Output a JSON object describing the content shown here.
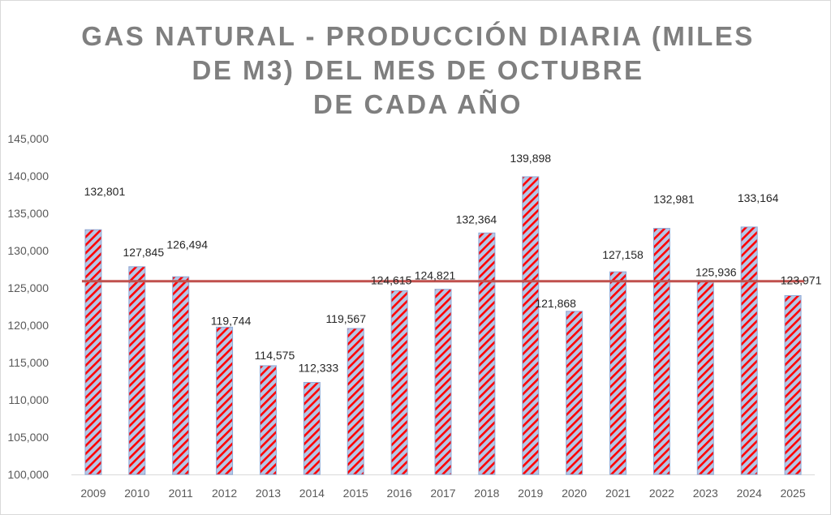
{
  "chart_data": {
    "type": "bar",
    "title_lines": [
      "GAS NATURAL - PRODUCCIÓN DIARIA (MILES",
      "DE M3) DEL MES DE OCTUBRE",
      "DE CADA AÑO"
    ],
    "categories": [
      "2009",
      "2010",
      "2011",
      "2012",
      "2013",
      "2014",
      "2015",
      "2016",
      "2017",
      "2018",
      "2019",
      "2020",
      "2021",
      "2022",
      "2023",
      "2024",
      "2025"
    ],
    "values": [
      132801,
      127845,
      126494,
      119744,
      114575,
      112333,
      119567,
      124615,
      124821,
      132364,
      139898,
      121868,
      127158,
      132981,
      125936,
      133164,
      123971
    ],
    "data_labels": [
      "132,801",
      "127,845",
      "126,494",
      "119,744",
      "114,575",
      "112,333",
      "119,567",
      "124,615",
      "124,821",
      "132,364",
      "139,898",
      "121,868",
      "127,158",
      "132,981",
      "125,936",
      "133,164",
      "123,971"
    ],
    "average_line": 125890,
    "ylim": [
      100000,
      145000
    ],
    "yticks": [
      100000,
      105000,
      110000,
      115000,
      120000,
      125000,
      130000,
      135000,
      140000,
      145000
    ],
    "ytick_labels": [
      "100,000",
      "105,000",
      "110,000",
      "115,000",
      "120,000",
      "125,000",
      "130,000",
      "135,000",
      "140,000",
      "145,000"
    ],
    "xlabel": "",
    "ylabel": "",
    "grid": false,
    "legend": "none",
    "colors": {
      "bar_fill": "#b4c7e7",
      "bar_stripe": "#ff0000",
      "bar_border": "#8fa9d6",
      "avg_line": "#c0504d",
      "axis": "#d9d9d9"
    }
  }
}
